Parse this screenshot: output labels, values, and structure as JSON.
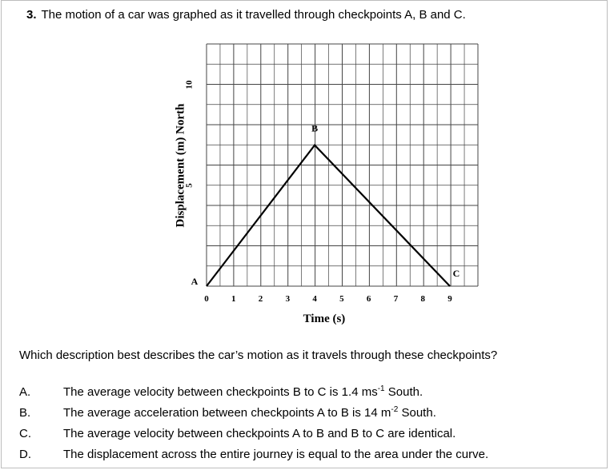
{
  "question": {
    "number": "3.",
    "title": "The motion of a car was graphed as it travelled through checkpoints A, B and C.",
    "prompt": "Which description best describes the car’s motion as it travels through these checkpoints?"
  },
  "options": [
    {
      "letter": "A.",
      "pre": "The average velocity between checkpoints B to C is 1.4 ms",
      "sup": "-1",
      "post": " South."
    },
    {
      "letter": "B.",
      "pre": "The average acceleration between checkpoints A to B is 14 m",
      "sup": "-2",
      "post": " South."
    },
    {
      "letter": "C.",
      "pre": "The average velocity between checkpoints A to B and B to C are identical.",
      "sup": "",
      "post": ""
    },
    {
      "letter": "D.",
      "pre": "The displacement across the entire journey is equal to the area under the curve.",
      "sup": "",
      "post": ""
    }
  ],
  "chart_data": {
    "type": "line",
    "xlabel": "Time (s)",
    "ylabel": "Displacement (m) North",
    "xlim": [
      0,
      9
    ],
    "ylim": [
      0,
      10
    ],
    "x_ticks": [
      "0",
      "1",
      "2",
      "3",
      "4",
      "5",
      "6",
      "7",
      "8",
      "9"
    ],
    "y_ticks": [
      "5",
      "10"
    ],
    "grid": true,
    "series": [
      {
        "points": [
          {
            "x": 0,
            "y": 0
          },
          {
            "x": 4,
            "y": 7
          },
          {
            "x": 9,
            "y": 0
          }
        ]
      }
    ],
    "annotations": [
      {
        "text": "A",
        "x": 0,
        "y": 0
      },
      {
        "text": "B",
        "x": 4,
        "y": 7
      },
      {
        "text": "C",
        "x": 9,
        "y": 0
      }
    ]
  }
}
